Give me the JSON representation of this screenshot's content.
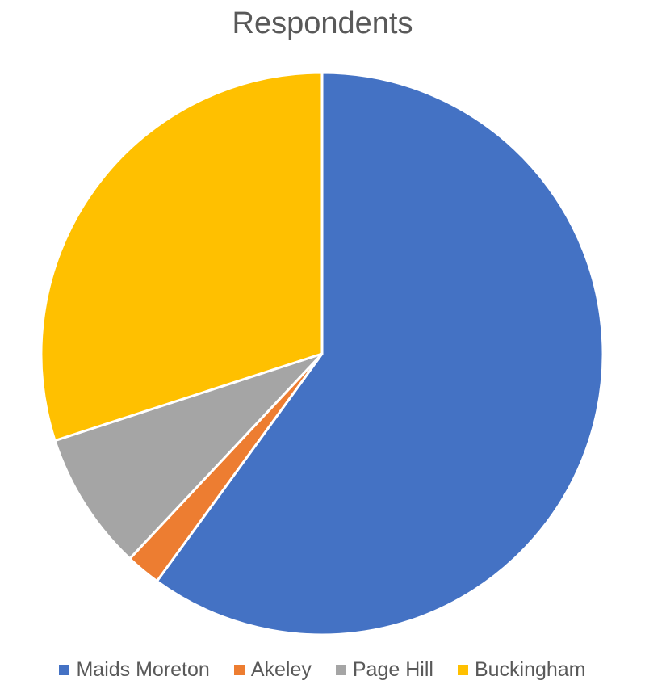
{
  "chart_data": {
    "type": "pie",
    "title": "Respondents",
    "categories": [
      "Maids Moreton",
      "Akeley",
      "Page Hill",
      "Buckingham"
    ],
    "values": [
      60,
      2,
      8,
      30
    ],
    "colors": [
      "#4472C4",
      "#ED7D31",
      "#A5A5A5",
      "#FFC000"
    ],
    "legend_position": "bottom"
  }
}
